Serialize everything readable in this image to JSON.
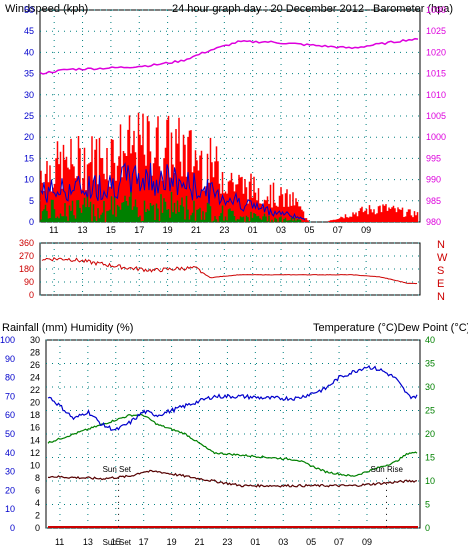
{
  "header": {
    "windspeed_label": "Windspeed (kph)",
    "title": "24 hour graph day : 20 December 2012",
    "barometer_label": "Barometer (hpa)"
  },
  "colors": {
    "axis_left": "#0000cc",
    "wind_red": "#ff0000",
    "wind_blue": "#0000cc",
    "wind_green": "#008000",
    "barometer": "#dd00dd",
    "winddir": "#cc0000",
    "humidity": "#0000cc",
    "temperature": "#008000",
    "dewpoint": "#550000",
    "rainfall": "#cc0000",
    "grid": "#008080"
  },
  "chart_data": [
    {
      "type": "line",
      "name": "wind-barometer",
      "x_ticks": [
        "11",
        "13",
        "15",
        "17",
        "19",
        "21",
        "23",
        "01",
        "03",
        "05",
        "07",
        "09"
      ],
      "left_axis": {
        "label": "Windspeed (kph)",
        "ticks": [
          "0",
          "5",
          "10",
          "15",
          "20",
          "25",
          "30",
          "35",
          "40",
          "45",
          "50"
        ],
        "ylim": [
          0,
          50
        ]
      },
      "right_axis": {
        "label": "Barometer (hpa)",
        "ticks": [
          "980",
          "985",
          "990",
          "995",
          "1000",
          "1005",
          "1010",
          "1015",
          "1020",
          "1025",
          "1030"
        ],
        "ylim": [
          980,
          1030
        ]
      },
      "series": [
        {
          "name": "Barometer (hpa)",
          "hours": [
            0,
            2,
            4,
            6,
            8,
            10,
            12,
            14,
            16,
            18,
            20,
            22,
            24,
            26
          ],
          "values": [
            1015,
            1016,
            1016.2,
            1016.5,
            1017,
            1018,
            1020.5,
            1022.5,
            1022.5,
            1022,
            1021.5,
            1021,
            1022,
            1023
          ]
        }
      ],
      "wind_bands": {
        "hours": [
          0,
          2,
          4,
          6,
          8,
          10,
          12,
          14,
          16,
          18,
          19,
          20,
          22,
          24,
          26
        ],
        "gust_max": [
          18,
          20,
          22,
          25,
          27,
          25,
          20,
          13,
          10,
          7,
          0,
          0,
          3,
          5,
          3
        ],
        "speed_max": [
          10,
          11,
          12,
          14,
          15,
          13,
          10,
          7,
          4,
          2,
          0,
          0,
          0,
          0,
          0
        ],
        "green_max": [
          5,
          6,
          6,
          7,
          8,
          7,
          5,
          3,
          2,
          1,
          0,
          0,
          0,
          0,
          0
        ]
      }
    },
    {
      "type": "line",
      "name": "wind-direction",
      "x_ticks": [],
      "left_axis": {
        "ticks": [
          "0",
          "90",
          "180",
          "270",
          "360"
        ],
        "ylim": [
          0,
          360
        ]
      },
      "right_axis": {
        "ticks": [
          "N",
          "W",
          "S",
          "E",
          "N"
        ]
      },
      "series": [
        {
          "name": "Wind direction",
          "hours": [
            0,
            2,
            4,
            6,
            8,
            10,
            11,
            12,
            14,
            16,
            18,
            20,
            22,
            24,
            26
          ],
          "values": [
            250,
            250,
            220,
            190,
            170,
            185,
            185,
            120,
            140,
            140,
            140,
            140,
            140,
            125,
            80
          ]
        }
      ]
    },
    {
      "type": "line",
      "name": "temperature-humidity",
      "x_ticks": [
        "11",
        "13",
        "15",
        "17",
        "19",
        "21",
        "23",
        "01",
        "03",
        "05",
        "07",
        "09"
      ],
      "header_left": "Rainfall (mm)  Humidity (%)",
      "header_right": "Temperature (°C)Dew Point (°C)",
      "left_axis_outer": {
        "ticks": [
          "0",
          "10",
          "20",
          "30",
          "40",
          "50",
          "60",
          "70",
          "80",
          "90",
          "100"
        ],
        "ylim": [
          0,
          100
        ]
      },
      "left_axis_inner": {
        "ticks": [
          "0",
          "2",
          "4",
          "6",
          "8",
          "10",
          "12",
          "14",
          "16",
          "18",
          "20",
          "22",
          "24",
          "26",
          "28",
          "30"
        ],
        "ylim": [
          0,
          30
        ]
      },
      "right_axis": {
        "ticks": [
          "0",
          "5",
          "10",
          "15",
          "20",
          "25",
          "30",
          "35",
          "40"
        ],
        "ylim": [
          0,
          40
        ]
      },
      "annotations": [
        {
          "label": "Sun Set",
          "hour": 5.2
        },
        {
          "label": "Sun Rise",
          "hour": 24.4
        },
        {
          "label": "Sun Set",
          "hour": 5.2,
          "position": "axis"
        }
      ],
      "series": [
        {
          "name": "Humidity (%)",
          "hours": [
            0,
            1,
            2,
            3,
            4,
            5,
            6,
            7,
            8,
            10,
            12,
            14,
            16,
            18,
            20,
            21,
            22,
            23,
            24,
            25,
            26
          ],
          "values": [
            71,
            65,
            58,
            62,
            55,
            52,
            56,
            62,
            60,
            65,
            70,
            70,
            69,
            69,
            74,
            80,
            83,
            86,
            84,
            80,
            70
          ]
        },
        {
          "name": "Temperature (°C)",
          "hours": [
            0,
            2,
            4,
            5,
            6,
            7,
            8,
            9,
            10,
            12,
            14,
            16,
            18,
            20,
            22,
            23,
            24,
            25,
            26
          ],
          "values": [
            18,
            20,
            22,
            23,
            24,
            24,
            22,
            21,
            20,
            16,
            15.5,
            15,
            14.5,
            12,
            11,
            12,
            13,
            14,
            16
          ]
        },
        {
          "name": "Dew Point (°C)",
          "hours": [
            0,
            4,
            6,
            7,
            8,
            10,
            12,
            14,
            16,
            18,
            20,
            22,
            24,
            26
          ],
          "values": [
            11,
            10.5,
            11,
            12,
            12,
            11,
            10,
            9,
            9,
            9,
            9,
            9,
            9.5,
            10
          ]
        },
        {
          "name": "Rainfall (mm)",
          "hours": [
            0,
            26
          ],
          "values": [
            0,
            0
          ]
        }
      ]
    }
  ]
}
